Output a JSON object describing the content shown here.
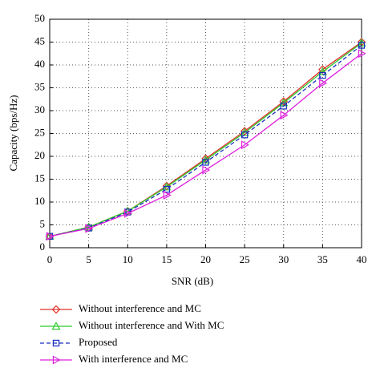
{
  "chart_data": {
    "type": "line",
    "x_label": "SNR (dB)",
    "y_label": "Capacity (bps/Hz)",
    "x": [
      0,
      5,
      10,
      15,
      20,
      25,
      30,
      35,
      40
    ],
    "series": [
      {
        "name": "Without interference and MC",
        "color": "#e0302a",
        "marker": "diamond",
        "dash": false,
        "values": [
          2.5,
          4.5,
          8.0,
          13.5,
          19.5,
          25.5,
          32.0,
          39.0,
          45.0
        ]
      },
      {
        "name": "Without interference and With MC",
        "color": "#2ecc2e",
        "marker": "triangle-up",
        "dash": false,
        "values": [
          2.5,
          4.5,
          8.0,
          13.3,
          19.2,
          25.2,
          31.7,
          38.5,
          44.8
        ]
      },
      {
        "name": "Proposed",
        "color": "#1a2fbf",
        "marker": "square",
        "dash": true,
        "values": [
          2.5,
          4.3,
          7.8,
          12.8,
          18.7,
          24.7,
          31.0,
          37.7,
          44.3
        ]
      },
      {
        "name": "With interference and MC",
        "color": "#dd22dd",
        "marker": "triangle-right",
        "dash": false,
        "values": [
          2.5,
          4.2,
          7.5,
          11.5,
          17.0,
          22.5,
          29.0,
          36.0,
          42.5
        ]
      }
    ],
    "xlim": [
      0,
      40
    ],
    "xticks": [
      0,
      5,
      10,
      15,
      20,
      25,
      30,
      35,
      40
    ],
    "ylim": [
      0,
      50
    ],
    "yticks": [
      0,
      5,
      10,
      15,
      20,
      25,
      30,
      35,
      40,
      45,
      50
    ],
    "grid": true
  }
}
